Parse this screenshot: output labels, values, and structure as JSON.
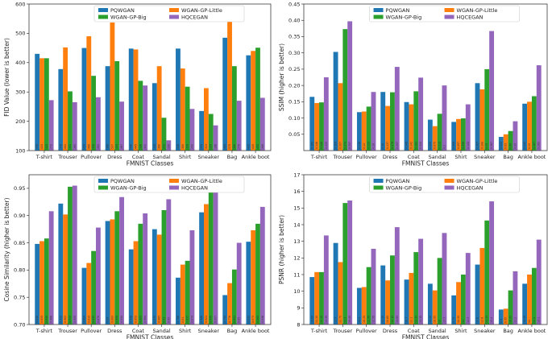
{
  "chart_data": [
    {
      "type": "bar",
      "title": "",
      "xlabel": "FMNIST Classes",
      "ylabel": "FID Value (lower is better)",
      "ylim": [
        100,
        600
      ],
      "yticks": [
        100,
        200,
        300,
        400,
        500,
        600
      ],
      "ytick_labels": [
        "100",
        "200",
        "300",
        "400",
        "500",
        "600"
      ],
      "legend_position": "top-center",
      "categories": [
        "T-shirt",
        "Trouser",
        "Pullover",
        "Dress",
        "Coat",
        "Sandal",
        "Shirt",
        "Sneaker",
        "Bag",
        "Ankle boot"
      ],
      "series": [
        {
          "name": "PQWGAN",
          "color": "#1f77b4",
          "values": [
            430,
            378,
            450,
            388,
            448,
            330,
            448,
            235,
            485,
            425
          ]
        },
        {
          "name": "WGAN-GP-Little",
          "color": "#ff7f0e",
          "values": [
            415,
            452,
            490,
            537,
            445,
            388,
            380,
            313,
            570,
            440
          ]
        },
        {
          "name": "WGAN-GP-Big",
          "color": "#2ca02c",
          "values": [
            415,
            302,
            355,
            405,
            338,
            212,
            318,
            225,
            388,
            451
          ]
        },
        {
          "name": "HQCEGAN",
          "color": "#9467bd",
          "values": [
            272,
            265,
            282,
            267,
            322,
            135,
            242,
            186,
            270,
            280
          ]
        }
      ]
    },
    {
      "type": "bar",
      "title": "",
      "xlabel": "FMNIST Classes",
      "ylabel": "SSIM (higher is better)",
      "ylim": [
        0.0,
        0.45
      ],
      "yticks": [
        0.05,
        0.1,
        0.15,
        0.2,
        0.25,
        0.3,
        0.35,
        0.4,
        0.45
      ],
      "ytick_labels": [
        "0.05",
        "0.10",
        "0.15",
        "0.20",
        "0.25",
        "0.30",
        "0.35",
        "0.40",
        "0.45"
      ],
      "legend_position": "top-center",
      "categories": [
        "T-shirt",
        "Trouser",
        "Pullover",
        "Dress",
        "Coat",
        "Sandal",
        "Shirt",
        "Sneaker",
        "Bag",
        "Ankle boot"
      ],
      "series": [
        {
          "name": "PQWGAN",
          "color": "#1f77b4",
          "values": [
            0.165,
            0.303,
            0.118,
            0.18,
            0.149,
            0.095,
            0.088,
            0.207,
            0.042,
            0.144
          ]
        },
        {
          "name": "WGAN-GP-Little",
          "color": "#ff7f0e",
          "values": [
            0.146,
            0.207,
            0.12,
            0.137,
            0.142,
            0.075,
            0.097,
            0.188,
            0.05,
            0.15
          ]
        },
        {
          "name": "WGAN-GP-Big",
          "color": "#2ca02c",
          "values": [
            0.148,
            0.373,
            0.135,
            0.179,
            0.182,
            0.113,
            0.099,
            0.25,
            0.06,
            0.167
          ]
        },
        {
          "name": "HQCEGAN",
          "color": "#9467bd",
          "values": [
            0.225,
            0.397,
            0.18,
            0.257,
            0.224,
            0.2,
            0.142,
            0.367,
            0.09,
            0.262
          ]
        }
      ]
    },
    {
      "type": "bar",
      "title": "",
      "xlabel": "FMNIST Classes",
      "ylabel": "Cosine Similarity (higher is better)",
      "ylim": [
        0.7,
        0.975
      ],
      "yticks": [
        0.7,
        0.75,
        0.8,
        0.85,
        0.9,
        0.95
      ],
      "ytick_labels": [
        "0.70",
        "0.75",
        "0.80",
        "0.85",
        "0.90",
        "0.95"
      ],
      "legend_position": "top-center",
      "categories": [
        "T-shirt",
        "Trouser",
        "Pullover",
        "Dress",
        "Coat",
        "Sandal",
        "Shirt",
        "Sneaker",
        "Bag",
        "Ankle boot"
      ],
      "series": [
        {
          "name": "PQWGAN",
          "color": "#1f77b4",
          "values": [
            0.848,
            0.922,
            0.804,
            0.89,
            0.838,
            0.875,
            0.786,
            0.906,
            0.754,
            0.852
          ]
        },
        {
          "name": "WGAN-GP-Little",
          "color": "#ff7f0e",
          "values": [
            0.853,
            0.902,
            0.813,
            0.893,
            0.853,
            0.865,
            0.81,
            0.921,
            0.776,
            0.873
          ]
        },
        {
          "name": "WGAN-GP-Big",
          "color": "#2ca02c",
          "values": [
            0.858,
            0.953,
            0.835,
            0.908,
            0.885,
            0.91,
            0.817,
            0.945,
            0.801,
            0.885
          ]
        },
        {
          "name": "HQCEGAN",
          "color": "#9467bd",
          "values": [
            0.908,
            0.955,
            0.878,
            0.934,
            0.904,
            0.93,
            0.873,
            0.957,
            0.85,
            0.916
          ]
        }
      ]
    },
    {
      "type": "bar",
      "title": "",
      "xlabel": "FMNIST Classes",
      "ylabel": "PSNR (higher is better)",
      "ylim": [
        8,
        17
      ],
      "yticks": [
        8,
        9,
        10,
        11,
        12,
        13,
        14,
        15,
        16,
        17
      ],
      "ytick_labels": [
        "8",
        "9",
        "10",
        "11",
        "12",
        "13",
        "14",
        "15",
        "16",
        "17"
      ],
      "legend_position": "top-center",
      "categories": [
        "T-shirt",
        "Trouser",
        "Pullover",
        "Dress",
        "Coat",
        "Sandal",
        "Shirt",
        "Sneaker",
        "Bag",
        "Ankle boot"
      ],
      "series": [
        {
          "name": "PQWGAN",
          "color": "#1f77b4",
          "values": [
            10.85,
            12.9,
            10.2,
            11.55,
            10.7,
            10.45,
            9.75,
            11.6,
            8.9,
            10.45
          ]
        },
        {
          "name": "WGAN-GP-Little",
          "color": "#ff7f0e",
          "values": [
            11.15,
            11.75,
            10.25,
            10.65,
            11.1,
            10.05,
            10.55,
            12.6,
            8.95,
            11.0
          ]
        },
        {
          "name": "WGAN-GP-Big",
          "color": "#2ca02c",
          "values": [
            11.15,
            15.3,
            11.45,
            12.15,
            12.35,
            12.0,
            11.0,
            14.25,
            10.05,
            11.4
          ]
        },
        {
          "name": "HQCEGAN",
          "color": "#9467bd",
          "values": [
            13.35,
            15.45,
            12.55,
            13.85,
            13.15,
            13.5,
            12.3,
            15.4,
            11.2,
            13.1
          ]
        }
      ]
    }
  ]
}
